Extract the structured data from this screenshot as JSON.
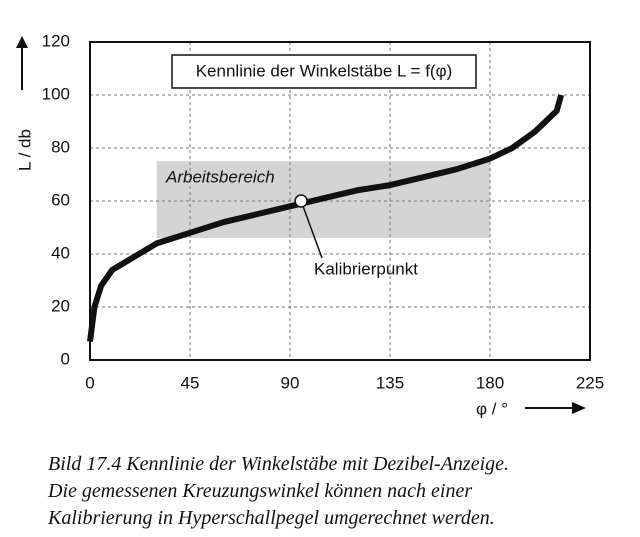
{
  "chart_data": {
    "type": "line",
    "title": "Kennlinie der Winkelstäbe L = f(φ)",
    "x_label": "φ / °",
    "y_label": "L / db",
    "x": [
      0,
      2,
      5,
      10,
      20,
      30,
      45,
      60,
      75,
      90,
      105,
      120,
      135,
      150,
      165,
      180,
      190,
      200,
      210,
      212
    ],
    "series": [
      {
        "name": "L",
        "color": "#111111",
        "values": [
          7,
          20,
          28,
          34,
          39,
          44,
          48,
          52,
          55,
          58,
          61,
          64,
          66,
          69,
          72,
          76,
          80,
          86,
          94,
          100
        ]
      }
    ],
    "xlim": [
      0,
      225
    ],
    "ylim": [
      0,
      120
    ],
    "xticks": [
      0,
      45,
      90,
      135,
      180,
      225
    ],
    "yticks": [
      0,
      20,
      40,
      60,
      80,
      100,
      120
    ],
    "grid": true,
    "working_range": {
      "label": "Arbeitsbereich",
      "x": [
        30,
        180
      ],
      "y": [
        46,
        75
      ]
    },
    "calibration_point": {
      "label": "Kalibrierpunkt",
      "x": 95,
      "y": 60
    }
  },
  "caption": [
    "Bild 17.4  Kennlinie der Winkelstäbe mit Dezibel-Anzeige.",
    "Die gemessenen Kreuzungswinkel können nach einer",
    "Kalibrierung in Hyperschallpegel umgerechnet werden."
  ]
}
